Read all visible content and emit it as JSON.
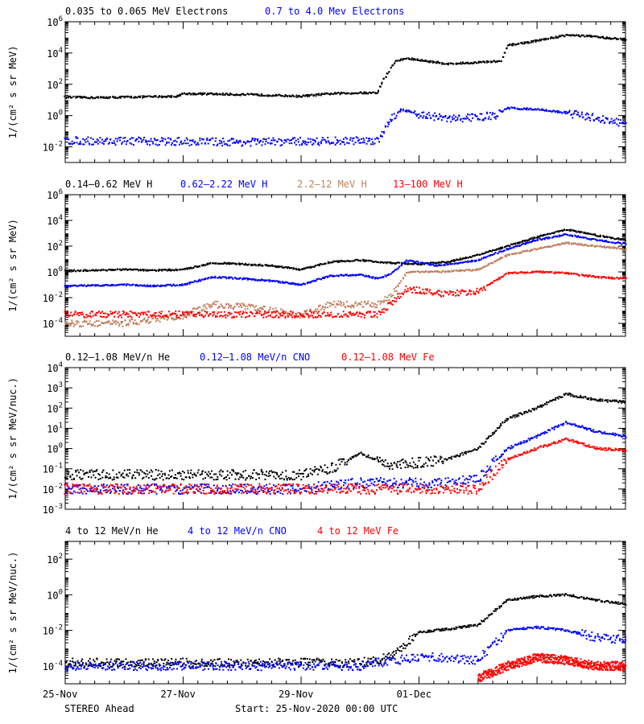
{
  "chart_data": [
    {
      "type": "scatter",
      "yscale": "log",
      "ylim": [
        0.001,
        1000000
      ],
      "ylabel": "1/(cm² s sr MeV)",
      "yticks": [
        {
          "value": 0.01,
          "base": "10",
          "exp": "-2"
        },
        {
          "value": 1,
          "base": "10",
          "exp": "0"
        },
        {
          "value": 100,
          "base": "10",
          "exp": "2"
        },
        {
          "value": 10000,
          "base": "10",
          "exp": "4"
        },
        {
          "value": 1000000,
          "base": "10",
          "exp": "6"
        }
      ],
      "series": [
        {
          "name": "0.035 to 0.065 MeV Electrons",
          "color": "#000000",
          "points": [
            [
              0,
              15
            ],
            [
              0.5,
              14
            ],
            [
              1,
              15
            ],
            [
              1.5,
              16
            ],
            [
              1.9,
              17
            ],
            [
              2,
              25
            ],
            [
              2.5,
              24
            ],
            [
              3,
              22
            ],
            [
              3.5,
              20
            ],
            [
              4,
              17
            ],
            [
              4.2,
              20
            ],
            [
              4.5,
              25
            ],
            [
              5,
              28
            ],
            [
              5.3,
              28
            ],
            [
              5.4,
              200
            ],
            [
              5.6,
              3000
            ],
            [
              5.8,
              4500
            ],
            [
              6,
              3500
            ],
            [
              6.5,
              2000
            ],
            [
              7,
              2500
            ],
            [
              7.4,
              3000
            ],
            [
              7.5,
              30000
            ],
            [
              7.7,
              40000
            ],
            [
              8,
              60000
            ],
            [
              8.5,
              140000
            ],
            [
              9,
              110000
            ],
            [
              9.5,
              70000
            ]
          ]
        },
        {
          "name": "0.7 to 4.0 Mev Electrons",
          "color": "#0000ff",
          "points": [
            [
              0,
              0.025
            ],
            [
              1,
              0.023
            ],
            [
              2,
              0.022
            ],
            [
              3,
              0.02
            ],
            [
              4,
              0.022
            ],
            [
              5,
              0.025
            ],
            [
              5.3,
              0.025
            ],
            [
              5.5,
              0.5
            ],
            [
              5.7,
              2.5
            ],
            [
              6,
              1.2
            ],
            [
              6.5,
              0.6
            ],
            [
              7,
              0.8
            ],
            [
              7.3,
              1
            ],
            [
              7.5,
              3
            ],
            [
              8,
              2.5
            ],
            [
              8.5,
              1.5
            ],
            [
              9,
              0.7
            ],
            [
              9.5,
              0.3
            ]
          ]
        }
      ]
    },
    {
      "type": "scatter",
      "yscale": "log",
      "ylim": [
        1e-05,
        1000000
      ],
      "ylabel": "1/(cm² s sr MeV)",
      "yticks": [
        {
          "value": 0.0001,
          "base": "10",
          "exp": "-4"
        },
        {
          "value": 0.01,
          "base": "10",
          "exp": "-2"
        },
        {
          "value": 1,
          "base": "10",
          "exp": "0"
        },
        {
          "value": 100,
          "base": "10",
          "exp": "2"
        },
        {
          "value": 10000,
          "base": "10",
          "exp": "4"
        },
        {
          "value": 1000000,
          "base": "10",
          "exp": "6"
        }
      ],
      "series": [
        {
          "name": "0.14–0.62 MeV H",
          "color": "#000000",
          "points": [
            [
              0,
              1.2
            ],
            [
              1,
              1.5
            ],
            [
              1.5,
              1.3
            ],
            [
              2,
              1.5
            ],
            [
              2.5,
              5
            ],
            [
              3,
              4
            ],
            [
              3.5,
              3
            ],
            [
              4,
              1.5
            ],
            [
              4.5,
              6
            ],
            [
              5,
              8
            ],
            [
              5.5,
              5
            ],
            [
              6,
              4
            ],
            [
              6.5,
              6
            ],
            [
              7,
              20
            ],
            [
              7.5,
              100
            ],
            [
              8,
              500
            ],
            [
              8.5,
              2000
            ],
            [
              9,
              700
            ],
            [
              9.5,
              300
            ]
          ]
        },
        {
          "name": "0.62–2.22 MeV H",
          "color": "#0000ff",
          "points": [
            [
              0,
              0.08
            ],
            [
              1,
              0.1
            ],
            [
              1.5,
              0.08
            ],
            [
              2,
              0.1
            ],
            [
              2.5,
              0.4
            ],
            [
              3,
              0.3
            ],
            [
              3.5,
              0.2
            ],
            [
              4,
              0.1
            ],
            [
              4.5,
              0.5
            ],
            [
              5,
              0.6
            ],
            [
              5.3,
              0.3
            ],
            [
              5.5,
              0.6
            ],
            [
              5.8,
              8
            ],
            [
              6.3,
              3
            ],
            [
              7,
              8
            ],
            [
              7.5,
              60
            ],
            [
              8,
              300
            ],
            [
              8.5,
              800
            ],
            [
              9,
              300
            ],
            [
              9.5,
              150
            ]
          ]
        },
        {
          "name": "2.2–12 MeV H",
          "color": "#c08060",
          "points": [
            [
              0,
              0.0001
            ],
            [
              1,
              0.0001
            ],
            [
              1.5,
              0.0002
            ],
            [
              2,
              0.0004
            ],
            [
              2.5,
              0.003
            ],
            [
              3,
              0.002
            ],
            [
              3.5,
              0.001
            ],
            [
              4,
              0.0004
            ],
            [
              4.5,
              0.003
            ],
            [
              5,
              0.003
            ],
            [
              5.3,
              0.003
            ],
            [
              5.5,
              0.01
            ],
            [
              5.8,
              1
            ],
            [
              6.3,
              1
            ],
            [
              7,
              1.5
            ],
            [
              7.5,
              20
            ],
            [
              8,
              60
            ],
            [
              8.5,
              180
            ],
            [
              9,
              100
            ],
            [
              9.5,
              60
            ]
          ]
        },
        {
          "name": "13–100 MeV H",
          "color": "#ff0000",
          "points": [
            [
              0,
              0.0005
            ],
            [
              1,
              0.0005
            ],
            [
              2,
              0.0005
            ],
            [
              3,
              0.0005
            ],
            [
              4,
              0.0005
            ],
            [
              5,
              0.0005
            ],
            [
              5.3,
              0.0005
            ],
            [
              5.5,
              0.003
            ],
            [
              5.8,
              0.05
            ],
            [
              6.3,
              0.02
            ],
            [
              7,
              0.03
            ],
            [
              7.5,
              0.8
            ],
            [
              8,
              1
            ],
            [
              8.5,
              0.8
            ],
            [
              9,
              0.4
            ],
            [
              9.5,
              0.3
            ]
          ]
        }
      ]
    },
    {
      "type": "scatter",
      "yscale": "log",
      "ylim": [
        0.001,
        10000
      ],
      "ylabel": "1/(cm² s sr MeV/nuc.)",
      "yticks": [
        {
          "value": 0.001,
          "base": "10",
          "exp": "-3"
        },
        {
          "value": 0.01,
          "base": "10",
          "exp": "-2"
        },
        {
          "value": 0.1,
          "base": "10",
          "exp": "-1"
        },
        {
          "value": 1,
          "base": "10",
          "exp": "0"
        },
        {
          "value": 10,
          "base": "10",
          "exp": "1"
        },
        {
          "value": 100,
          "base": "10",
          "exp": "2"
        },
        {
          "value": 1000,
          "base": "10",
          "exp": "3"
        },
        {
          "value": 10000,
          "base": "10",
          "exp": "4"
        }
      ],
      "series": [
        {
          "name": "0.12–1.08 MeV/n He",
          "color": "#000000",
          "points": [
            [
              0,
              0.05
            ],
            [
              1,
              0.05
            ],
            [
              2,
              0.05
            ],
            [
              3,
              0.05
            ],
            [
              4,
              0.05
            ],
            [
              4.5,
              0.1
            ],
            [
              5,
              0.6
            ],
            [
              5.5,
              0.15
            ],
            [
              6,
              0.2
            ],
            [
              6.5,
              0.3
            ],
            [
              7,
              1
            ],
            [
              7.5,
              30
            ],
            [
              8,
              100
            ],
            [
              8.5,
              500
            ],
            [
              9,
              250
            ],
            [
              9.5,
              200
            ]
          ]
        },
        {
          "name": "0.12–1.08 MeV/n CNO",
          "color": "#0000ff",
          "points": [
            [
              0,
              0.01
            ],
            [
              2,
              0.01
            ],
            [
              4,
              0.01
            ],
            [
              5,
              0.02
            ],
            [
              6,
              0.02
            ],
            [
              6.5,
              0.02
            ],
            [
              7,
              0.03
            ],
            [
              7.5,
              1
            ],
            [
              8,
              4
            ],
            [
              8.5,
              20
            ],
            [
              9,
              7
            ],
            [
              9.5,
              4
            ]
          ]
        },
        {
          "name": "0.12–1.08 MeV Fe",
          "color": "#ff0000",
          "points": [
            [
              0,
              0.01
            ],
            [
              2,
              0.01
            ],
            [
              4,
              0.01
            ],
            [
              6,
              0.01
            ],
            [
              7,
              0.01
            ],
            [
              7.5,
              0.3
            ],
            [
              8,
              1
            ],
            [
              8.5,
              3
            ],
            [
              9,
              1
            ],
            [
              9.5,
              0.8
            ]
          ]
        }
      ]
    },
    {
      "type": "scatter",
      "yscale": "log",
      "ylim": [
        1e-05,
        1000
      ],
      "ylabel": "1/(cm² s sr MeV/nuc.)",
      "yticks": [
        {
          "value": 0.0001,
          "base": "10",
          "exp": "-4"
        },
        {
          "value": 0.01,
          "base": "10",
          "exp": "-2"
        },
        {
          "value": 1,
          "base": "10",
          "exp": "0"
        },
        {
          "value": 100,
          "base": "10",
          "exp": "2"
        }
      ],
      "series": [
        {
          "name": "4 to 12 MeV/n He",
          "color": "#000000",
          "points": [
            [
              0,
              0.00015
            ],
            [
              2,
              0.00015
            ],
            [
              4,
              0.00015
            ],
            [
              5,
              0.00015
            ],
            [
              5.5,
              0.0003
            ],
            [
              6,
              0.008
            ],
            [
              6.5,
              0.012
            ],
            [
              7,
              0.02
            ],
            [
              7.5,
              0.5
            ],
            [
              8,
              0.8
            ],
            [
              8.5,
              1
            ],
            [
              9,
              0.5
            ],
            [
              9.5,
              0.3
            ]
          ]
        },
        {
          "name": "4 to 12 MeV/n CNO",
          "color": "#0000ff",
          "points": [
            [
              0,
              0.0001
            ],
            [
              2,
              0.0001
            ],
            [
              4,
              0.0001
            ],
            [
              5,
              0.0001
            ],
            [
              5.5,
              0.0002
            ],
            [
              6,
              0.0003
            ],
            [
              6.5,
              0.0003
            ],
            [
              7,
              0.0002
            ],
            [
              7.5,
              0.01
            ],
            [
              8,
              0.015
            ],
            [
              8.5,
              0.01
            ],
            [
              9,
              0.004
            ],
            [
              9.5,
              0.003
            ]
          ]
        },
        {
          "name": "4 to 12 MeV Fe",
          "color": "#ff0000",
          "points": [
            [
              7,
              2e-05
            ],
            [
              7.5,
              0.0001
            ],
            [
              8,
              0.0003
            ],
            [
              8.5,
              0.0002
            ],
            [
              9,
              0.0001
            ],
            [
              9.5,
              0.0001
            ]
          ]
        }
      ]
    }
  ],
  "xaxis": {
    "range_days": [
      0,
      9.5
    ],
    "ticks": [
      {
        "day": 0,
        "label": "25-Nov"
      },
      {
        "day": 2,
        "label": "27-Nov"
      },
      {
        "day": 4,
        "label": "29-Nov"
      },
      {
        "day": 6,
        "label": "01-Dec"
      }
    ]
  },
  "footer": {
    "spacecraft": "STEREO Ahead",
    "start": "Start: 25-Nov-2020 00:00 UTC"
  }
}
